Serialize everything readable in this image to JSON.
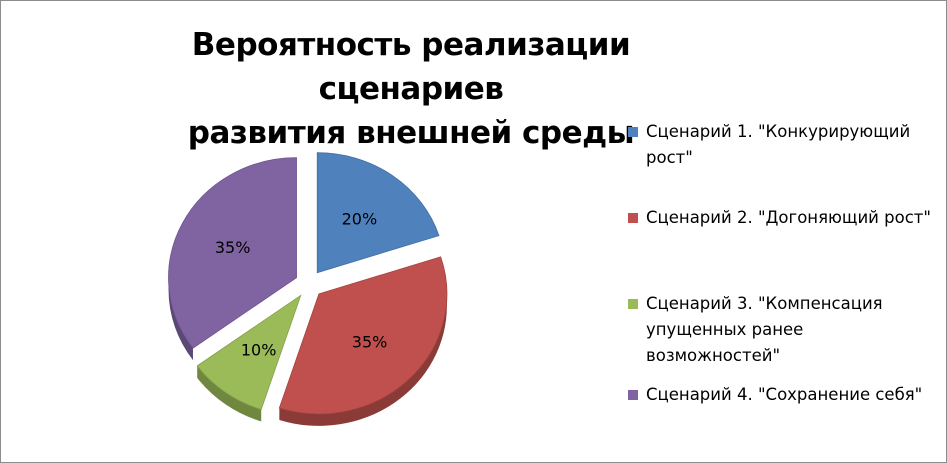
{
  "chart_data": {
    "type": "pie",
    "title_lines": [
      "Вероятность реализации сценариев",
      "развития внешней среды"
    ],
    "categories": [
      "Сценарий 1. \"Конкурирующий рост\"",
      "Сценарий 2. \"Догоняющий рост\"",
      "Сценарий 3. \"Компенсация упущенных ранее возможностей\"",
      "Сценарий 4. \"Сохранение себя\""
    ],
    "values": [
      20,
      35,
      10,
      35
    ],
    "value_labels": [
      "20%",
      "35%",
      "10%",
      "35%"
    ],
    "colors": [
      "#4f81bd",
      "#c0504d",
      "#9bbb59",
      "#8064a2"
    ],
    "exploded": true,
    "legend_position": "right"
  }
}
